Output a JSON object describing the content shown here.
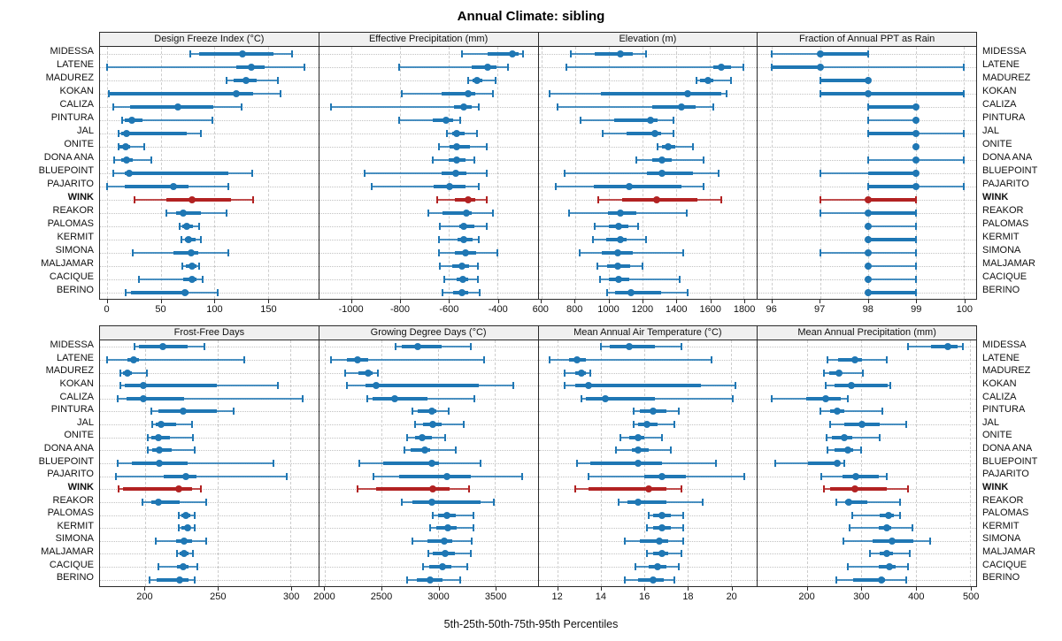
{
  "title": "Annual Climate: sibling",
  "footer": "5th-25th-50th-75th-95th Percentiles",
  "colors": {
    "series": "#1f77b4",
    "highlight": "#b22222",
    "vgrid": "#cdcdcd",
    "hgrid": "#c2c2c2",
    "panel_header_bg": "#f0f0f0",
    "frame": "#2a2a2a"
  },
  "stations": [
    "MIDESSA",
    "LATENE",
    "MADUREZ",
    "KOKAN",
    "CALIZA",
    "PINTURA",
    "JAL",
    "ONITE",
    "DONA ANA",
    "BLUEPOINT",
    "PAJARITO",
    "WINK",
    "REAKOR",
    "PALOMAS",
    "KERMIT",
    "SIMONA",
    "MALJAMAR",
    "CACIQUE",
    "BERINO"
  ],
  "highlight_station": "WINK",
  "chart_data": {
    "type": "dot-whisker-percentiles",
    "percentile_labels": [
      "5th",
      "25th",
      "50th",
      "75th",
      "95th"
    ],
    "layout": {
      "rows": 2,
      "cols": 4,
      "left_labels": true,
      "right_labels": true,
      "grid": true
    },
    "panels": [
      {
        "slug": "design-freeze-index",
        "title": "Design Freeze Index (°C)",
        "ticks": [
          0,
          50,
          100,
          150
        ],
        "range": [
          -7,
          197
        ],
        "values": [
          [
            77,
            86,
            126,
            155,
            172
          ],
          [
            0,
            120,
            134,
            147,
            184
          ],
          [
            111,
            118,
            129,
            139,
            159
          ],
          [
            1,
            2,
            120,
            136,
            162
          ],
          [
            5,
            21,
            66,
            99,
            125
          ],
          [
            14,
            16,
            23,
            33,
            98
          ],
          [
            10,
            13,
            18,
            74,
            87
          ],
          [
            10,
            11,
            17,
            21,
            34
          ],
          [
            6,
            13,
            18,
            24,
            41
          ],
          [
            5,
            16,
            20,
            113,
            135
          ],
          [
            0,
            16,
            62,
            76,
            113
          ],
          [
            25,
            55,
            79,
            115,
            136
          ],
          [
            55,
            64,
            71,
            87,
            111
          ],
          [
            67,
            70,
            74,
            80,
            86
          ],
          [
            69,
            72,
            76,
            82,
            87
          ],
          [
            24,
            62,
            78,
            85,
            113
          ],
          [
            70,
            73,
            79,
            83,
            86
          ],
          [
            29,
            71,
            79,
            83,
            89
          ],
          [
            17,
            22,
            72,
            76,
            103
          ]
        ]
      },
      {
        "slug": "effective-precipitation",
        "title": "Effective Precipitation (mm)",
        "ticks": [
          -1000,
          -800,
          -600,
          -400
        ],
        "range": [
          -1133,
          -235
        ],
        "values": [
          [
            -545,
            -440,
            -340,
            -315,
            -295
          ],
          [
            -806,
            -507,
            -441,
            -405,
            -357
          ],
          [
            -521,
            -503,
            -486,
            -461,
            -407
          ],
          [
            -794,
            -630,
            -521,
            -491,
            -419
          ],
          [
            -1085,
            -580,
            -539,
            -507,
            -477
          ],
          [
            -804,
            -668,
            -612,
            -581,
            -555
          ],
          [
            -608,
            -587,
            -567,
            -537,
            -485
          ],
          [
            -641,
            -597,
            -569,
            -515,
            -443
          ],
          [
            -668,
            -600,
            -567,
            -530,
            -497
          ],
          [
            -946,
            -630,
            -572,
            -527,
            -443
          ],
          [
            -917,
            -664,
            -596,
            -530,
            -477
          ],
          [
            -648,
            -575,
            -519,
            -491,
            -444
          ],
          [
            -686,
            -626,
            -528,
            -507,
            -419
          ],
          [
            -636,
            -557,
            -539,
            -497,
            -443
          ],
          [
            -641,
            -565,
            -540,
            -503,
            -477
          ],
          [
            -641,
            -575,
            -533,
            -489,
            -401
          ],
          [
            -636,
            -587,
            -545,
            -516,
            -480
          ],
          [
            -620,
            -569,
            -543,
            -521,
            -479
          ],
          [
            -626,
            -581,
            -546,
            -519,
            -473
          ]
        ]
      },
      {
        "slug": "elevation",
        "title": "Elevation (m)",
        "ticks": [
          600,
          800,
          1000,
          1200,
          1400,
          1600,
          1800
        ],
        "range": [
          583,
          1879
        ],
        "values": [
          [
            775,
            915,
            1070,
            1140,
            1220
          ],
          [
            747,
            1618,
            1666,
            1728,
            1800
          ],
          [
            1519,
            1540,
            1589,
            1622,
            1727
          ],
          [
            651,
            953,
            1466,
            1666,
            1700
          ],
          [
            695,
            1260,
            1430,
            1515,
            1620
          ],
          [
            835,
            1030,
            1245,
            1290,
            1385
          ],
          [
            965,
            1105,
            1275,
            1310,
            1385
          ],
          [
            1290,
            1315,
            1350,
            1395,
            1500
          ],
          [
            1165,
            1260,
            1315,
            1375,
            1560
          ],
          [
            740,
            1225,
            1315,
            1500,
            1650
          ],
          [
            687,
            913,
            1120,
            1430,
            1560
          ],
          [
            940,
            1080,
            1285,
            1525,
            1665
          ],
          [
            765,
            997,
            1070,
            1165,
            1465
          ],
          [
            915,
            1000,
            1060,
            1115,
            1175
          ],
          [
            905,
            985,
            1070,
            1107,
            1220
          ],
          [
            825,
            960,
            1055,
            1145,
            1440
          ],
          [
            930,
            990,
            1055,
            1125,
            1200
          ],
          [
            950,
            1000,
            1058,
            1120,
            1420
          ],
          [
            990,
            1035,
            1130,
            1310,
            1470
          ]
        ]
      },
      {
        "slug": "fraction-ppt-rain",
        "title": "Fraction of Annual PPT as Rain",
        "ticks": [
          96,
          97,
          98,
          99,
          100
        ],
        "range": [
          95.7,
          100.26
        ],
        "values": [
          [
            96,
            97,
            97,
            98,
            98
          ],
          [
            96,
            96,
            97,
            97,
            100
          ],
          [
            97,
            97,
            98,
            98,
            98
          ],
          [
            97,
            97,
            98,
            100,
            100
          ],
          [
            98,
            98,
            99,
            99,
            99
          ],
          [
            98,
            99,
            99,
            99,
            99
          ],
          [
            98,
            98,
            99,
            99,
            100
          ],
          [
            99,
            99,
            99,
            99,
            99
          ],
          [
            98,
            99,
            99,
            99,
            100
          ],
          [
            97,
            98,
            99,
            99,
            99
          ],
          [
            98,
            98,
            99,
            99,
            100
          ],
          [
            97,
            98,
            98,
            99,
            99
          ],
          [
            97,
            98,
            98,
            99,
            99
          ],
          [
            98,
            98,
            98,
            98,
            99
          ],
          [
            98,
            98,
            98,
            99,
            99
          ],
          [
            97,
            98,
            98,
            98,
            99
          ],
          [
            98,
            98,
            98,
            98,
            99
          ],
          [
            98,
            98,
            98,
            98,
            99
          ],
          [
            98,
            98,
            98,
            99,
            99
          ]
        ]
      },
      {
        "slug": "frost-free-days",
        "title": "Frost-Free Days",
        "ticks": [
          200,
          250,
          300
        ],
        "range": [
          169,
          319
        ],
        "values": [
          [
            193,
            196,
            212,
            229,
            241
          ],
          [
            174,
            188,
            192,
            196,
            268
          ],
          [
            183,
            185,
            188,
            191,
            201
          ],
          [
            183,
            186,
            199,
            249,
            291
          ],
          [
            181,
            187,
            199,
            227,
            308
          ],
          [
            204,
            209,
            226,
            249,
            261
          ],
          [
            205,
            207,
            211,
            221,
            232
          ],
          [
            202,
            204,
            209,
            217,
            233
          ],
          [
            202,
            205,
            210,
            218,
            234
          ],
          [
            181,
            191,
            210,
            229,
            288
          ],
          [
            180,
            213,
            228,
            235,
            297
          ],
          [
            182,
            185,
            223,
            232,
            238
          ],
          [
            198,
            204,
            209,
            224,
            242
          ],
          [
            223,
            225,
            228,
            231,
            234
          ],
          [
            223,
            225,
            229,
            231,
            234
          ],
          [
            207,
            221,
            227,
            232,
            242
          ],
          [
            222,
            224,
            227,
            230,
            233
          ],
          [
            209,
            222,
            226,
            230,
            236
          ],
          [
            203,
            208,
            224,
            230,
            234
          ]
        ]
      },
      {
        "slug": "growing-degree-days",
        "title": "Growing Degree Days (°C)",
        "ticks": [
          2000,
          2500,
          3000,
          3500
        ],
        "range": [
          1948,
          3875
        ],
        "values": [
          [
            2620,
            2675,
            2815,
            3025,
            3285
          ],
          [
            2050,
            2195,
            2282,
            2380,
            3400
          ],
          [
            2180,
            2295,
            2380,
            2418,
            2464
          ],
          [
            2190,
            2354,
            2449,
            3354,
            3662
          ],
          [
            2370,
            2420,
            2615,
            2900,
            3320
          ],
          [
            2770,
            2815,
            2938,
            2982,
            3092
          ],
          [
            2797,
            2867,
            2949,
            3028,
            3226
          ],
          [
            2720,
            2790,
            2859,
            2944,
            3060
          ],
          [
            2700,
            2751,
            2879,
            2923,
            3150
          ],
          [
            2303,
            2515,
            2938,
            3008,
            3372
          ],
          [
            2430,
            2650,
            3072,
            3282,
            3738
          ],
          [
            2285,
            2449,
            2951,
            3097,
            3269
          ],
          [
            2674,
            2772,
            2944,
            3372,
            3487
          ],
          [
            2950,
            2995,
            3072,
            3149,
            3310
          ],
          [
            2930,
            2982,
            3079,
            3162,
            3310
          ],
          [
            2770,
            2905,
            3054,
            3123,
            3290
          ],
          [
            2913,
            2951,
            3059,
            3141,
            3282
          ],
          [
            2867,
            2918,
            3038,
            3110,
            3251
          ],
          [
            2721,
            2808,
            2926,
            3033,
            3195
          ]
        ]
      },
      {
        "slug": "mean-annual-air-temperature",
        "title": "Mean Annual Air Temperature (°C)",
        "ticks": [
          12,
          14,
          16,
          18,
          20
        ],
        "range": [
          11.1,
          21.2
        ],
        "values": [
          [
            14.0,
            14.4,
            15.3,
            16.5,
            17.7
          ],
          [
            11.6,
            12.5,
            12.9,
            13.3,
            19.1
          ],
          [
            12.3,
            12.8,
            13.1,
            13.3,
            13.5
          ],
          [
            12.3,
            12.8,
            13.4,
            18.6,
            20.2
          ],
          [
            13.1,
            13.3,
            14.2,
            16.5,
            20.1
          ],
          [
            15.5,
            15.8,
            16.4,
            17.0,
            17.6
          ],
          [
            15.5,
            15.7,
            16.1,
            16.6,
            17.4
          ],
          [
            14.9,
            15.3,
            15.7,
            16.0,
            16.8
          ],
          [
            14.7,
            15.4,
            15.7,
            16.2,
            17.2
          ],
          [
            12.9,
            13.5,
            15.7,
            16.8,
            19.3
          ],
          [
            13.4,
            16.0,
            16.8,
            17.9,
            20.6
          ],
          [
            12.8,
            13.4,
            16.2,
            17.0,
            17.7
          ],
          [
            14.8,
            15.2,
            15.7,
            17.0,
            18.7
          ],
          [
            16.2,
            16.4,
            16.8,
            17.2,
            17.8
          ],
          [
            16.1,
            16.4,
            16.8,
            17.2,
            17.8
          ],
          [
            15.1,
            15.8,
            16.7,
            17.1,
            17.8
          ],
          [
            16.1,
            16.4,
            16.8,
            17.1,
            17.7
          ],
          [
            15.6,
            16.2,
            16.6,
            17.0,
            17.6
          ],
          [
            15.1,
            15.7,
            16.4,
            16.9,
            17.4
          ]
        ]
      },
      {
        "slug": "mean-annual-precipitation",
        "title": "Mean Annual Precipitation (mm)",
        "ticks": [
          200,
          300,
          400,
          500
        ],
        "range": [
          109,
          511
        ],
        "values": [
          [
            386,
            428,
            459,
            477,
            487
          ],
          [
            237,
            257,
            288,
            301,
            346
          ],
          [
            230,
            241,
            258,
            262,
            303
          ],
          [
            234,
            250,
            282,
            348,
            353
          ],
          [
            134,
            198,
            234,
            261,
            274
          ],
          [
            225,
            242,
            256,
            268,
            339
          ],
          [
            242,
            268,
            301,
            333,
            383
          ],
          [
            235,
            245,
            268,
            283,
            334
          ],
          [
            237,
            251,
            274,
            285,
            299
          ],
          [
            141,
            201,
            256,
            260,
            268
          ],
          [
            226,
            265,
            290,
            332,
            346
          ],
          [
            231,
            242,
            287,
            347,
            386
          ],
          [
            254,
            270,
            277,
            310,
            371
          ],
          [
            283,
            333,
            349,
            360,
            371
          ],
          [
            278,
            332,
            347,
            355,
            394
          ],
          [
            267,
            320,
            356,
            396,
            426
          ],
          [
            316,
            333,
            347,
            358,
            389
          ],
          [
            274,
            331,
            351,
            363,
            386
          ],
          [
            254,
            285,
            337,
            344,
            382
          ]
        ]
      }
    ]
  }
}
